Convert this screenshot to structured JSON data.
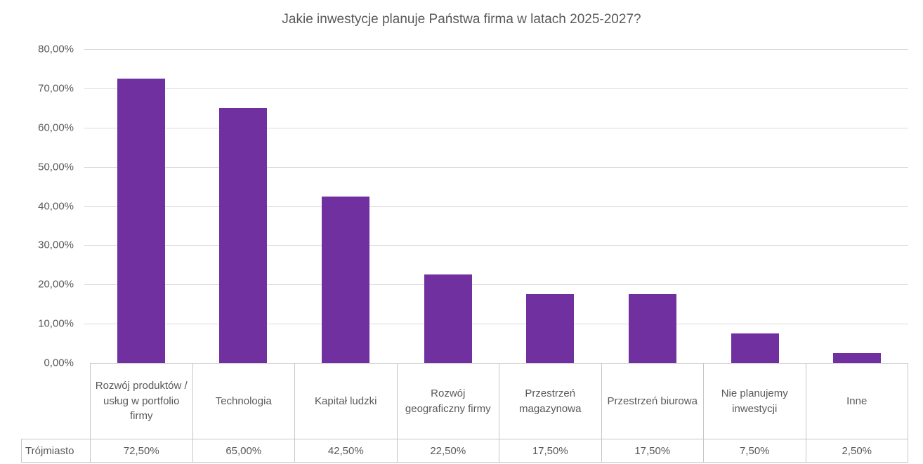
{
  "chart_data": {
    "type": "bar",
    "title": "Jakie inwestycje planuje Państwa firma w latach 2025-2027?",
    "categories": [
      "Rozwój produktów / usług w portfolio firmy",
      "Technologia",
      "Kapitał ludzki",
      "Rozwój geograficzny firmy",
      "Przestrzeń magazynowa",
      "Przestrzeń biurowa",
      "Nie planujemy inwestycji",
      "Inne"
    ],
    "series": [
      {
        "name": "Trójmiasto",
        "values": [
          72.5,
          65.0,
          42.5,
          22.5,
          17.5,
          17.5,
          7.5,
          2.5
        ]
      }
    ],
    "value_labels": [
      "72,50%",
      "65,00%",
      "42,50%",
      "22,50%",
      "17,50%",
      "17,50%",
      "7,50%",
      "2,50%"
    ],
    "y_ticks": [
      "80,00%",
      "70,00%",
      "60,00%",
      "50,00%",
      "40,00%",
      "30,00%",
      "20,00%",
      "10,00%",
      "0,00%"
    ],
    "ylim": [
      0,
      80
    ],
    "xlabel": "",
    "ylabel": "",
    "grid": true,
    "legend_position": "none",
    "bar_color": "#7030A0",
    "gridline_color": "#dadada",
    "text_color": "#595959"
  }
}
